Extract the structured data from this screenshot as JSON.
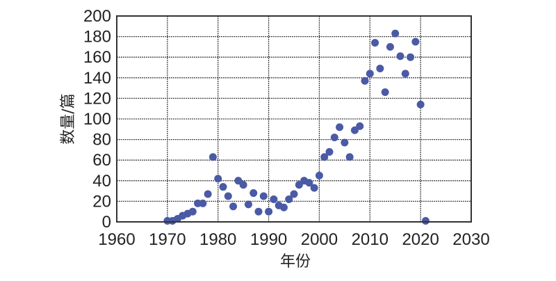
{
  "chart_data": {
    "type": "scatter",
    "title": "",
    "xlabel": "年份",
    "ylabel": "数量/篇",
    "xlim": [
      1960,
      2030
    ],
    "ylim": [
      0,
      200
    ],
    "xticks": [
      1960,
      1970,
      1980,
      1990,
      2000,
      2010,
      2020,
      2030
    ],
    "yticks": [
      0,
      20,
      40,
      60,
      80,
      100,
      120,
      140,
      160,
      180,
      200
    ],
    "grid": true,
    "marker_color": "#4a5aa5",
    "points": [
      [
        1970,
        1
      ],
      [
        1971,
        1
      ],
      [
        1972,
        3
      ],
      [
        1973,
        6
      ],
      [
        1974,
        8
      ],
      [
        1975,
        10
      ],
      [
        1976,
        18
      ],
      [
        1977,
        18
      ],
      [
        1978,
        27
      ],
      [
        1979,
        63
      ],
      [
        1980,
        42
      ],
      [
        1981,
        34
      ],
      [
        1982,
        25
      ],
      [
        1983,
        15
      ],
      [
        1984,
        40
      ],
      [
        1985,
        36
      ],
      [
        1986,
        17
      ],
      [
        1987,
        28
      ],
      [
        1988,
        10
      ],
      [
        1989,
        25
      ],
      [
        1990,
        10
      ],
      [
        1991,
        22
      ],
      [
        1992,
        16
      ],
      [
        1993,
        14
      ],
      [
        1994,
        22
      ],
      [
        1995,
        27
      ],
      [
        1996,
        36
      ],
      [
        1997,
        40
      ],
      [
        1998,
        38
      ],
      [
        1999,
        33
      ],
      [
        2000,
        45
      ],
      [
        2001,
        63
      ],
      [
        2002,
        68
      ],
      [
        2003,
        82
      ],
      [
        2004,
        92
      ],
      [
        2005,
        77
      ],
      [
        2006,
        63
      ],
      [
        2007,
        89
      ],
      [
        2008,
        93
      ],
      [
        2009,
        137
      ],
      [
        2010,
        144
      ],
      [
        2011,
        174
      ],
      [
        2012,
        149
      ],
      [
        2013,
        126
      ],
      [
        2014,
        170
      ],
      [
        2015,
        183
      ],
      [
        2016,
        161
      ],
      [
        2017,
        144
      ],
      [
        2018,
        160
      ],
      [
        2019,
        175
      ],
      [
        2020,
        114
      ],
      [
        2021,
        1
      ]
    ]
  }
}
